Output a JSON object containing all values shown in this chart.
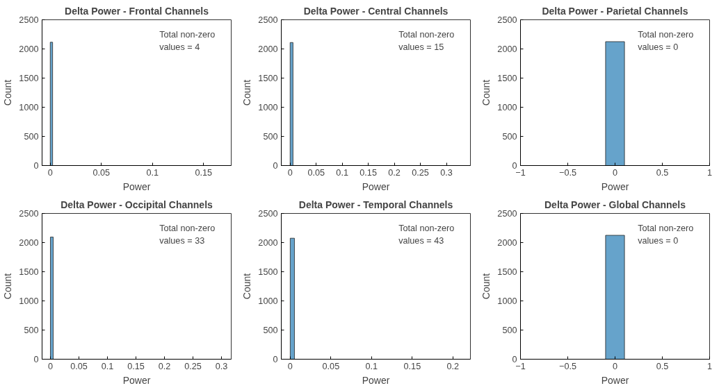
{
  "chart_data": [
    {
      "type": "histogram",
      "title": "Delta Power - Frontal Channels",
      "xlabel": "Power",
      "ylabel": "Count",
      "bins": [
        0,
        0.0023
      ],
      "values": [
        2115
      ],
      "color": "#66a3cb",
      "xlim": [
        -0.008,
        0.177
      ],
      "xticks": [
        0,
        0.05,
        0.1,
        0.15
      ],
      "ylim": [
        0,
        2500
      ],
      "yticks": [
        0,
        500,
        1000,
        1500,
        2000,
        2500
      ],
      "grid": false,
      "annotations": [
        "Total non-zero\nvalues = 4"
      ]
    },
    {
      "type": "histogram",
      "title": "Delta Power - Central Channels",
      "xlabel": "Power",
      "ylabel": "Count",
      "bins": [
        0,
        0.0055
      ],
      "values": [
        2110
      ],
      "color": "#66a3cb",
      "xlim": [
        -0.017,
        0.346
      ],
      "xticks": [
        0,
        0.05,
        0.1,
        0.15,
        0.2,
        0.25,
        0.3
      ],
      "ylim": [
        0,
        2500
      ],
      "yticks": [
        0,
        500,
        1000,
        1500,
        2000,
        2500
      ],
      "grid": false,
      "annotations": [
        "Total non-zero\nvalues = 15"
      ]
    },
    {
      "type": "histogram",
      "title": "Delta Power - Parietal Channels",
      "xlabel": "Power",
      "ylabel": "Count",
      "bins": [
        -0.1,
        0.1
      ],
      "values": [
        2125
      ],
      "color": "#66a3cb",
      "xlim": [
        -1,
        1
      ],
      "xticks": [
        -1,
        -0.5,
        0,
        0.5,
        1
      ],
      "ylim": [
        0,
        2500
      ],
      "yticks": [
        0,
        500,
        1000,
        1500,
        2000,
        2500
      ],
      "grid": false,
      "annotations": [
        "Total non-zero\nvalues = 0"
      ]
    },
    {
      "type": "histogram",
      "title": "Delta Power - Occipital Channels",
      "xlabel": "Power",
      "ylabel": "Count",
      "bins": [
        0,
        0.005
      ],
      "values": [
        2095
      ],
      "color": "#66a3cb",
      "xlim": [
        -0.0146,
        0.317
      ],
      "xticks": [
        0,
        0.05,
        0.1,
        0.15,
        0.2,
        0.25,
        0.3
      ],
      "ylim": [
        0,
        2500
      ],
      "yticks": [
        0,
        500,
        1000,
        1500,
        2000,
        2500
      ],
      "grid": false,
      "annotations": [
        "Total non-zero\nvalues = 33"
      ]
    },
    {
      "type": "histogram",
      "title": "Delta Power - Temporal Channels",
      "xlabel": "Power",
      "ylabel": "Count",
      "bins": [
        0,
        0.0052
      ],
      "values": [
        2075
      ],
      "color": "#66a3cb",
      "xlim": [
        -0.011,
        0.2215
      ],
      "xticks": [
        0,
        0.05,
        0.1,
        0.15,
        0.2
      ],
      "ylim": [
        0,
        2500
      ],
      "yticks": [
        0,
        500,
        1000,
        1500,
        2000,
        2500
      ],
      "grid": false,
      "annotations": [
        "Total non-zero\nvalues = 43"
      ]
    },
    {
      "type": "histogram",
      "title": "Delta Power - Global Channels",
      "xlabel": "Power",
      "ylabel": "Count",
      "bins": [
        -0.1,
        0.1
      ],
      "values": [
        2125
      ],
      "color": "#66a3cb",
      "xlim": [
        -1,
        1
      ],
      "xticks": [
        -1,
        -0.5,
        0,
        0.5,
        1
      ],
      "ylim": [
        0,
        2500
      ],
      "yticks": [
        0,
        500,
        1000,
        1500,
        2000,
        2500
      ],
      "grid": false,
      "annotations": [
        "Total non-zero\nvalues = 0"
      ]
    }
  ]
}
